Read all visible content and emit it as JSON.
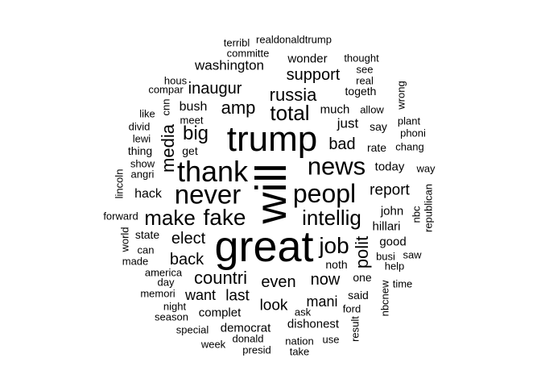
{
  "word_cloud": {
    "text_color": "#000000",
    "background": "#ffffff",
    "words": [
      {
        "text": "great",
        "weight": 100
      },
      {
        "text": "will",
        "weight": 98
      },
      {
        "text": "trump",
        "weight": 82
      },
      {
        "text": "thank",
        "weight": 66
      },
      {
        "text": "never",
        "weight": 64
      },
      {
        "text": "peopl",
        "weight": 62
      },
      {
        "text": "news",
        "weight": 60
      },
      {
        "text": "fake",
        "weight": 54
      },
      {
        "text": "make",
        "weight": 52
      },
      {
        "text": "intellig",
        "weight": 52
      },
      {
        "text": "job",
        "weight": 54
      },
      {
        "text": "polit",
        "weight": 46
      },
      {
        "text": "media",
        "weight": 46
      },
      {
        "text": "total",
        "weight": 50
      },
      {
        "text": "big",
        "weight": 46
      },
      {
        "text": "russia",
        "weight": 44
      },
      {
        "text": "amp",
        "weight": 44
      },
      {
        "text": "support",
        "weight": 40
      },
      {
        "text": "inaugur",
        "weight": 40
      },
      {
        "text": "bad",
        "weight": 40
      },
      {
        "text": "elect",
        "weight": 40
      },
      {
        "text": "back",
        "weight": 40
      },
      {
        "text": "countri",
        "weight": 42
      },
      {
        "text": "even",
        "weight": 40
      },
      {
        "text": "now",
        "weight": 40
      },
      {
        "text": "last",
        "weight": 38
      },
      {
        "text": "want",
        "weight": 36
      },
      {
        "text": "look",
        "weight": 38
      },
      {
        "text": "mani",
        "weight": 36
      },
      {
        "text": "report",
        "weight": 38
      },
      {
        "text": "washington",
        "weight": 34
      },
      {
        "text": "just",
        "weight": 34
      },
      {
        "text": "bush",
        "weight": 32
      },
      {
        "text": "hack",
        "weight": 32
      },
      {
        "text": "today",
        "weight": 30
      },
      {
        "text": "good",
        "weight": 30
      },
      {
        "text": "dishonest",
        "weight": 30
      },
      {
        "text": "democrat",
        "weight": 30
      },
      {
        "text": "complet",
        "weight": 30
      },
      {
        "text": "john",
        "weight": 28
      },
      {
        "text": "hillari",
        "weight": 28
      },
      {
        "text": "wonder",
        "weight": 28
      },
      {
        "text": "much",
        "weight": 28
      },
      {
        "text": "togeth",
        "weight": 26
      },
      {
        "text": "noth",
        "weight": 26
      },
      {
        "text": "one",
        "weight": 26
      },
      {
        "text": "said",
        "weight": 26
      },
      {
        "text": "get",
        "weight": 26
      },
      {
        "text": "say",
        "weight": 26
      },
      {
        "text": "rate",
        "weight": 26
      },
      {
        "text": "state",
        "weight": 26
      },
      {
        "text": "thing",
        "weight": 24
      },
      {
        "text": "allow",
        "weight": 24
      },
      {
        "text": "meet",
        "weight": 24
      },
      {
        "text": "see",
        "weight": 24
      },
      {
        "text": "real",
        "weight": 24
      },
      {
        "text": "thought",
        "weight": 24
      },
      {
        "text": "nbc",
        "weight": 24
      },
      {
        "text": "saw",
        "weight": 24
      },
      {
        "text": "busi",
        "weight": 24
      },
      {
        "text": "help",
        "weight": 24
      },
      {
        "text": "time",
        "weight": 24
      },
      {
        "text": "ford",
        "weight": 24
      },
      {
        "text": "use",
        "weight": 24
      },
      {
        "text": "america",
        "weight": 24
      },
      {
        "text": "can",
        "weight": 24
      },
      {
        "text": "forward",
        "weight": 24
      },
      {
        "text": "lincoln",
        "weight": 24
      },
      {
        "text": "wrong",
        "weight": 24
      },
      {
        "text": "plant",
        "weight": 24
      },
      {
        "text": "phoni",
        "weight": 24
      },
      {
        "text": "chang",
        "weight": 24
      },
      {
        "text": "way",
        "weight": 24
      },
      {
        "text": "republican",
        "weight": 24
      },
      {
        "text": "like",
        "weight": 24
      },
      {
        "text": "divid",
        "weight": 24
      },
      {
        "text": "lewi",
        "weight": 24
      },
      {
        "text": "show",
        "weight": 24
      },
      {
        "text": "angri",
        "weight": 24
      },
      {
        "text": "hous",
        "weight": 24
      },
      {
        "text": "compar",
        "weight": 24
      },
      {
        "text": "cnn",
        "weight": 24
      },
      {
        "text": "terribl",
        "weight": 24
      },
      {
        "text": "realdonaldtrump",
        "weight": 24
      },
      {
        "text": "committe",
        "weight": 24
      },
      {
        "text": "world",
        "weight": 24
      },
      {
        "text": "made",
        "weight": 24
      },
      {
        "text": "day",
        "weight": 24
      },
      {
        "text": "memori",
        "weight": 24
      },
      {
        "text": "night",
        "weight": 24
      },
      {
        "text": "season",
        "weight": 24
      },
      {
        "text": "special",
        "weight": 24
      },
      {
        "text": "week",
        "weight": 24
      },
      {
        "text": "donald",
        "weight": 24
      },
      {
        "text": "presid",
        "weight": 24
      },
      {
        "text": "nation",
        "weight": 24
      },
      {
        "text": "take",
        "weight": 24
      },
      {
        "text": "ask",
        "weight": 24
      },
      {
        "text": "result",
        "weight": 24
      },
      {
        "text": "nbcnew",
        "weight": 24
      }
    ]
  }
}
